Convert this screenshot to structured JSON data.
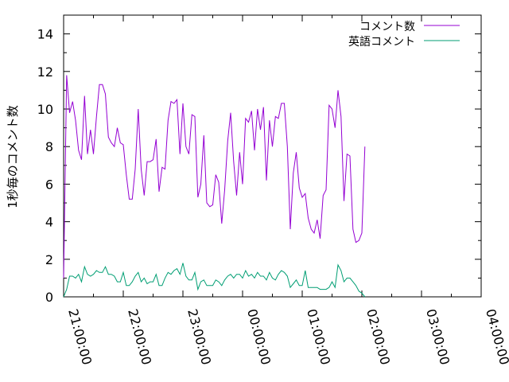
{
  "chart_data": {
    "type": "line",
    "title": "",
    "xlabel": "",
    "ylabel": "1秒毎のコメント数",
    "xlim": [
      "21:00:00",
      "04:00:00"
    ],
    "ylim": [
      0,
      15
    ],
    "xticks": [
      "21:00:00",
      "22:00:00",
      "23:00:00",
      "00:00:00",
      "01:00:00",
      "02:00:00",
      "03:00:00",
      "04:00:00"
    ],
    "yticks": [
      0,
      2,
      4,
      6,
      8,
      10,
      12,
      14
    ],
    "legend": "top-right",
    "grid": false,
    "series": [
      {
        "name": "コメント数",
        "color": "#9400d3",
        "x_start": "21:00:00",
        "x_step_minutes": 3,
        "values": [
          1.0,
          11.8,
          9.8,
          10.4,
          9.4,
          7.8,
          7.3,
          10.7,
          7.6,
          8.9,
          7.6,
          9.6,
          11.3,
          11.3,
          10.8,
          8.5,
          8.2,
          8.0,
          9.0,
          8.2,
          8.1,
          6.5,
          5.2,
          5.2,
          6.8,
          10.0,
          6.8,
          5.4,
          7.2,
          7.2,
          7.3,
          8.4,
          5.6,
          6.9,
          6.8,
          9.4,
          10.4,
          10.3,
          10.5,
          7.6,
          10.3,
          8.0,
          7.6,
          9.7,
          9.6,
          5.3,
          6.0,
          8.6,
          5.0,
          4.8,
          4.9,
          6.5,
          6.1,
          3.9,
          5.7,
          8.3,
          9.8,
          7.2,
          5.4,
          7.7,
          6.0,
          9.5,
          9.3,
          9.9,
          7.8,
          10.0,
          8.9,
          10.1,
          6.2,
          9.4,
          8.0,
          9.6,
          9.5,
          10.3,
          10.3,
          8.0,
          3.6,
          6.6,
          7.7,
          5.8,
          5.3,
          5.5,
          4.2,
          3.6,
          3.4,
          4.1,
          3.1,
          5.4,
          5.7,
          10.2,
          10.0,
          9.0,
          11.0,
          9.6,
          5.1,
          7.6,
          7.5,
          3.6,
          2.9,
          3.0,
          3.4,
          8.0
        ]
      },
      {
        "name": "英語コメント",
        "color": "#009e73",
        "x_start": "21:00:00",
        "x_step_minutes": 3,
        "values": [
          0.0,
          0.4,
          1.1,
          1.1,
          1.0,
          1.2,
          0.8,
          1.6,
          1.2,
          1.1,
          1.2,
          1.4,
          1.3,
          1.3,
          1.6,
          1.2,
          1.2,
          1.1,
          0.8,
          0.8,
          1.3,
          0.6,
          0.6,
          0.8,
          1.1,
          1.3,
          0.8,
          1.0,
          0.7,
          0.8,
          0.8,
          1.2,
          0.6,
          0.6,
          1.0,
          1.3,
          1.2,
          1.4,
          1.5,
          1.2,
          1.8,
          1.1,
          0.9,
          0.9,
          1.3,
          0.4,
          0.8,
          0.9,
          0.6,
          0.6,
          0.6,
          0.9,
          0.8,
          0.6,
          0.9,
          1.1,
          1.2,
          1.0,
          1.2,
          1.2,
          1.0,
          1.4,
          1.1,
          1.2,
          1.0,
          1.3,
          1.1,
          1.1,
          0.9,
          1.3,
          1.0,
          0.9,
          1.2,
          1.4,
          1.3,
          1.1,
          0.5,
          0.7,
          0.9,
          0.6,
          0.6,
          1.4,
          0.5,
          0.5,
          0.5,
          0.5,
          0.4,
          0.4,
          0.4,
          0.5,
          0.8,
          0.5,
          1.7,
          1.4,
          0.8,
          1.0,
          1.0,
          0.8,
          0.6,
          0.3,
          0.2,
          0.0
        ]
      }
    ]
  }
}
